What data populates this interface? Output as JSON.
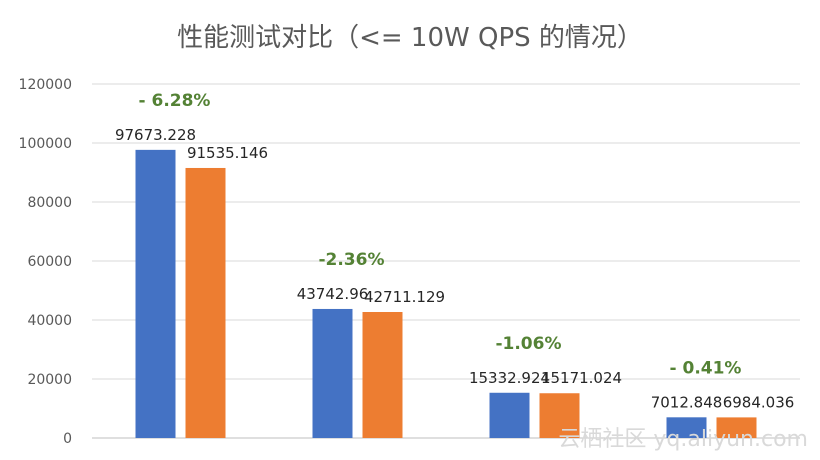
{
  "chart_data": {
    "type": "bar",
    "title": "性能测试对比（<= 10W QPS 的情况）",
    "xlabel": "",
    "ylabel": "",
    "ylim": [
      0,
      120000
    ],
    "yticks": [
      0,
      20000,
      40000,
      60000,
      80000,
      100000,
      120000
    ],
    "grid": true,
    "legend": "none",
    "categories": [
      "",
      "",
      "",
      ""
    ],
    "series": [
      {
        "color": "#4472c4",
        "values": [
          97673.228,
          43742.96,
          15332.924,
          7012.848
        ],
        "labels": [
          "97673.228",
          "43742.96",
          "15332.924",
          "7012.848"
        ]
      },
      {
        "color": "#ed7d31",
        "values": [
          91535.146,
          42711.129,
          15171.024,
          6984.036
        ],
        "labels": [
          "91535.146",
          "42711.129",
          "15171.024",
          "6984.036"
        ]
      }
    ],
    "annotations": [
      "- 6.28%",
      "-2.36%",
      "-1.06%",
      "- 0.41%"
    ],
    "annotation_color": "#548235"
  },
  "watermark": "云栖社区 yq.aliyun.com"
}
